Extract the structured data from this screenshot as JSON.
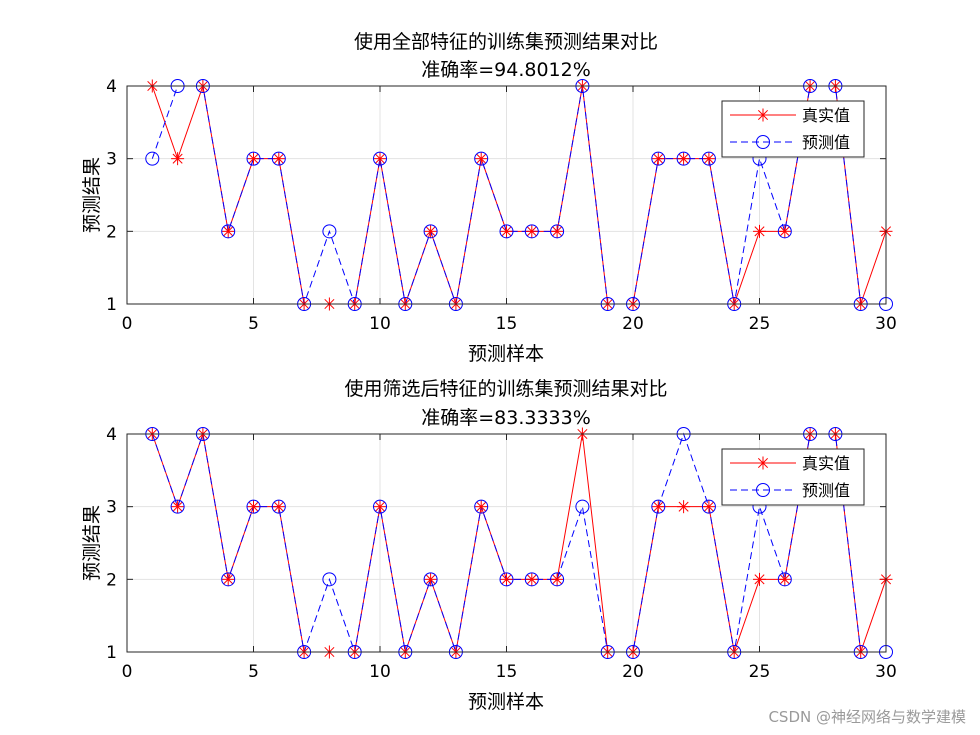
{
  "watermark": "CSDN @神经网络与数学建模",
  "chart_data": [
    {
      "type": "line",
      "title": "使用全部特征的训练集预测结果对比",
      "subtitle": "准确率=94.8012%",
      "xlabel": "预测样本",
      "ylabel": "预测结果",
      "xlim": [
        0,
        30
      ],
      "ylim": [
        1,
        4
      ],
      "xticks": [
        0,
        5,
        10,
        15,
        20,
        25,
        30
      ],
      "yticks": [
        1,
        2,
        3,
        4
      ],
      "grid": true,
      "legend_position": "top-right",
      "x": [
        1,
        2,
        3,
        4,
        5,
        6,
        7,
        8,
        9,
        10,
        11,
        12,
        13,
        14,
        15,
        16,
        17,
        18,
        19,
        20,
        21,
        22,
        23,
        24,
        25,
        26,
        27,
        28,
        29,
        30
      ],
      "series": [
        {
          "name": "真实值",
          "color": "#ff0000",
          "marker": "asterisk",
          "line": "solid",
          "values": [
            4,
            3,
            4,
            2,
            3,
            3,
            1,
            1,
            1,
            3,
            1,
            2,
            1,
            3,
            2,
            2,
            2,
            4,
            1,
            1,
            3,
            3,
            3,
            1,
            2,
            2,
            4,
            4,
            1,
            2
          ]
        },
        {
          "name": "预测值",
          "color": "#0000ff",
          "marker": "circle",
          "line": "dashed",
          "values": [
            3,
            4,
            4,
            2,
            3,
            3,
            1,
            2,
            1,
            3,
            1,
            2,
            1,
            3,
            2,
            2,
            2,
            4,
            1,
            1,
            3,
            3,
            3,
            1,
            3,
            2,
            4,
            4,
            1,
            1
          ]
        }
      ]
    },
    {
      "type": "line",
      "title": "使用筛选后特征的训练集预测结果对比",
      "subtitle": "准确率=83.3333%",
      "xlabel": "预测样本",
      "ylabel": "预测结果",
      "xlim": [
        0,
        30
      ],
      "ylim": [
        1,
        4
      ],
      "xticks": [
        0,
        5,
        10,
        15,
        20,
        25,
        30
      ],
      "yticks": [
        1,
        2,
        3,
        4
      ],
      "grid": true,
      "legend_position": "top-right",
      "x": [
        1,
        2,
        3,
        4,
        5,
        6,
        7,
        8,
        9,
        10,
        11,
        12,
        13,
        14,
        15,
        16,
        17,
        18,
        19,
        20,
        21,
        22,
        23,
        24,
        25,
        26,
        27,
        28,
        29,
        30
      ],
      "series": [
        {
          "name": "真实值",
          "color": "#ff0000",
          "marker": "asterisk",
          "line": "solid",
          "values": [
            4,
            3,
            4,
            2,
            3,
            3,
            1,
            1,
            1,
            3,
            1,
            2,
            1,
            3,
            2,
            2,
            2,
            4,
            1,
            1,
            3,
            3,
            3,
            1,
            2,
            2,
            4,
            4,
            1,
            2
          ]
        },
        {
          "name": "预测值",
          "color": "#0000ff",
          "marker": "circle",
          "line": "dashed",
          "values": [
            4,
            3,
            4,
            2,
            3,
            3,
            1,
            2,
            1,
            3,
            1,
            2,
            1,
            3,
            2,
            2,
            2,
            3,
            1,
            1,
            3,
            4,
            3,
            1,
            3,
            2,
            4,
            4,
            1,
            1
          ]
        }
      ]
    }
  ]
}
